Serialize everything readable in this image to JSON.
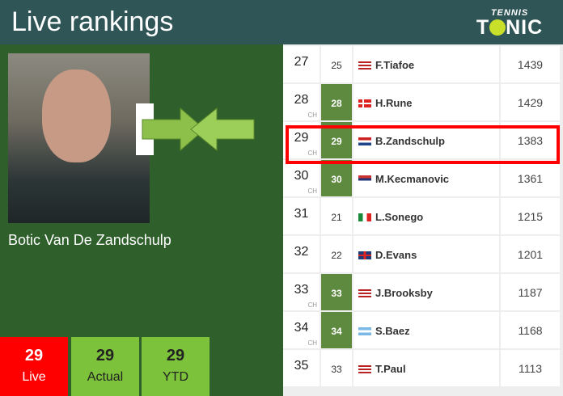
{
  "header": {
    "title": "Live rankings",
    "logo_top": "TENNIS",
    "logo_bottom": "TONIC"
  },
  "player": {
    "name": "Botic Van De Zandschulp",
    "live": "29",
    "live_label": "Live",
    "actual": "29",
    "actual_label": "Actual",
    "ytd": "29",
    "ytd_label": "YTD"
  },
  "colors": {
    "header": "#2f5557",
    "panel": "#2f5f2b",
    "live": "#ff0000",
    "box": "#7cc23a",
    "career_high": "#5d8a3f",
    "highlight": "#ff0000"
  },
  "rows": [
    {
      "rank": "27",
      "ch": "",
      "prev": "25",
      "prev_ch": false,
      "flag": "usa",
      "name": "F.Tiafoe",
      "points": "1439"
    },
    {
      "rank": "28",
      "ch": "CH",
      "prev": "28",
      "prev_ch": true,
      "flag": "denmark",
      "name": "H.Rune",
      "points": "1429"
    },
    {
      "rank": "29",
      "ch": "CH",
      "prev": "29",
      "prev_ch": true,
      "flag": "netherlands",
      "name": "B.Zandschulp",
      "points": "1383",
      "highlight": true
    },
    {
      "rank": "30",
      "ch": "CH",
      "prev": "30",
      "prev_ch": true,
      "flag": "serbia",
      "name": "M.Kecmanovic",
      "points": "1361"
    },
    {
      "rank": "31",
      "ch": "",
      "prev": "21",
      "prev_ch": false,
      "flag": "italy",
      "name": "L.Sonego",
      "points": "1215"
    },
    {
      "rank": "32",
      "ch": "",
      "prev": "22",
      "prev_ch": false,
      "flag": "uk",
      "name": "D.Evans",
      "points": "1201"
    },
    {
      "rank": "33",
      "ch": "CH",
      "prev": "33",
      "prev_ch": true,
      "flag": "usa",
      "name": "J.Brooksby",
      "points": "1187"
    },
    {
      "rank": "34",
      "ch": "CH",
      "prev": "34",
      "prev_ch": true,
      "flag": "argentina",
      "name": "S.Baez",
      "points": "1168"
    },
    {
      "rank": "35",
      "ch": "",
      "prev": "33",
      "prev_ch": false,
      "flag": "usa",
      "name": "T.Paul",
      "points": "1113"
    }
  ]
}
